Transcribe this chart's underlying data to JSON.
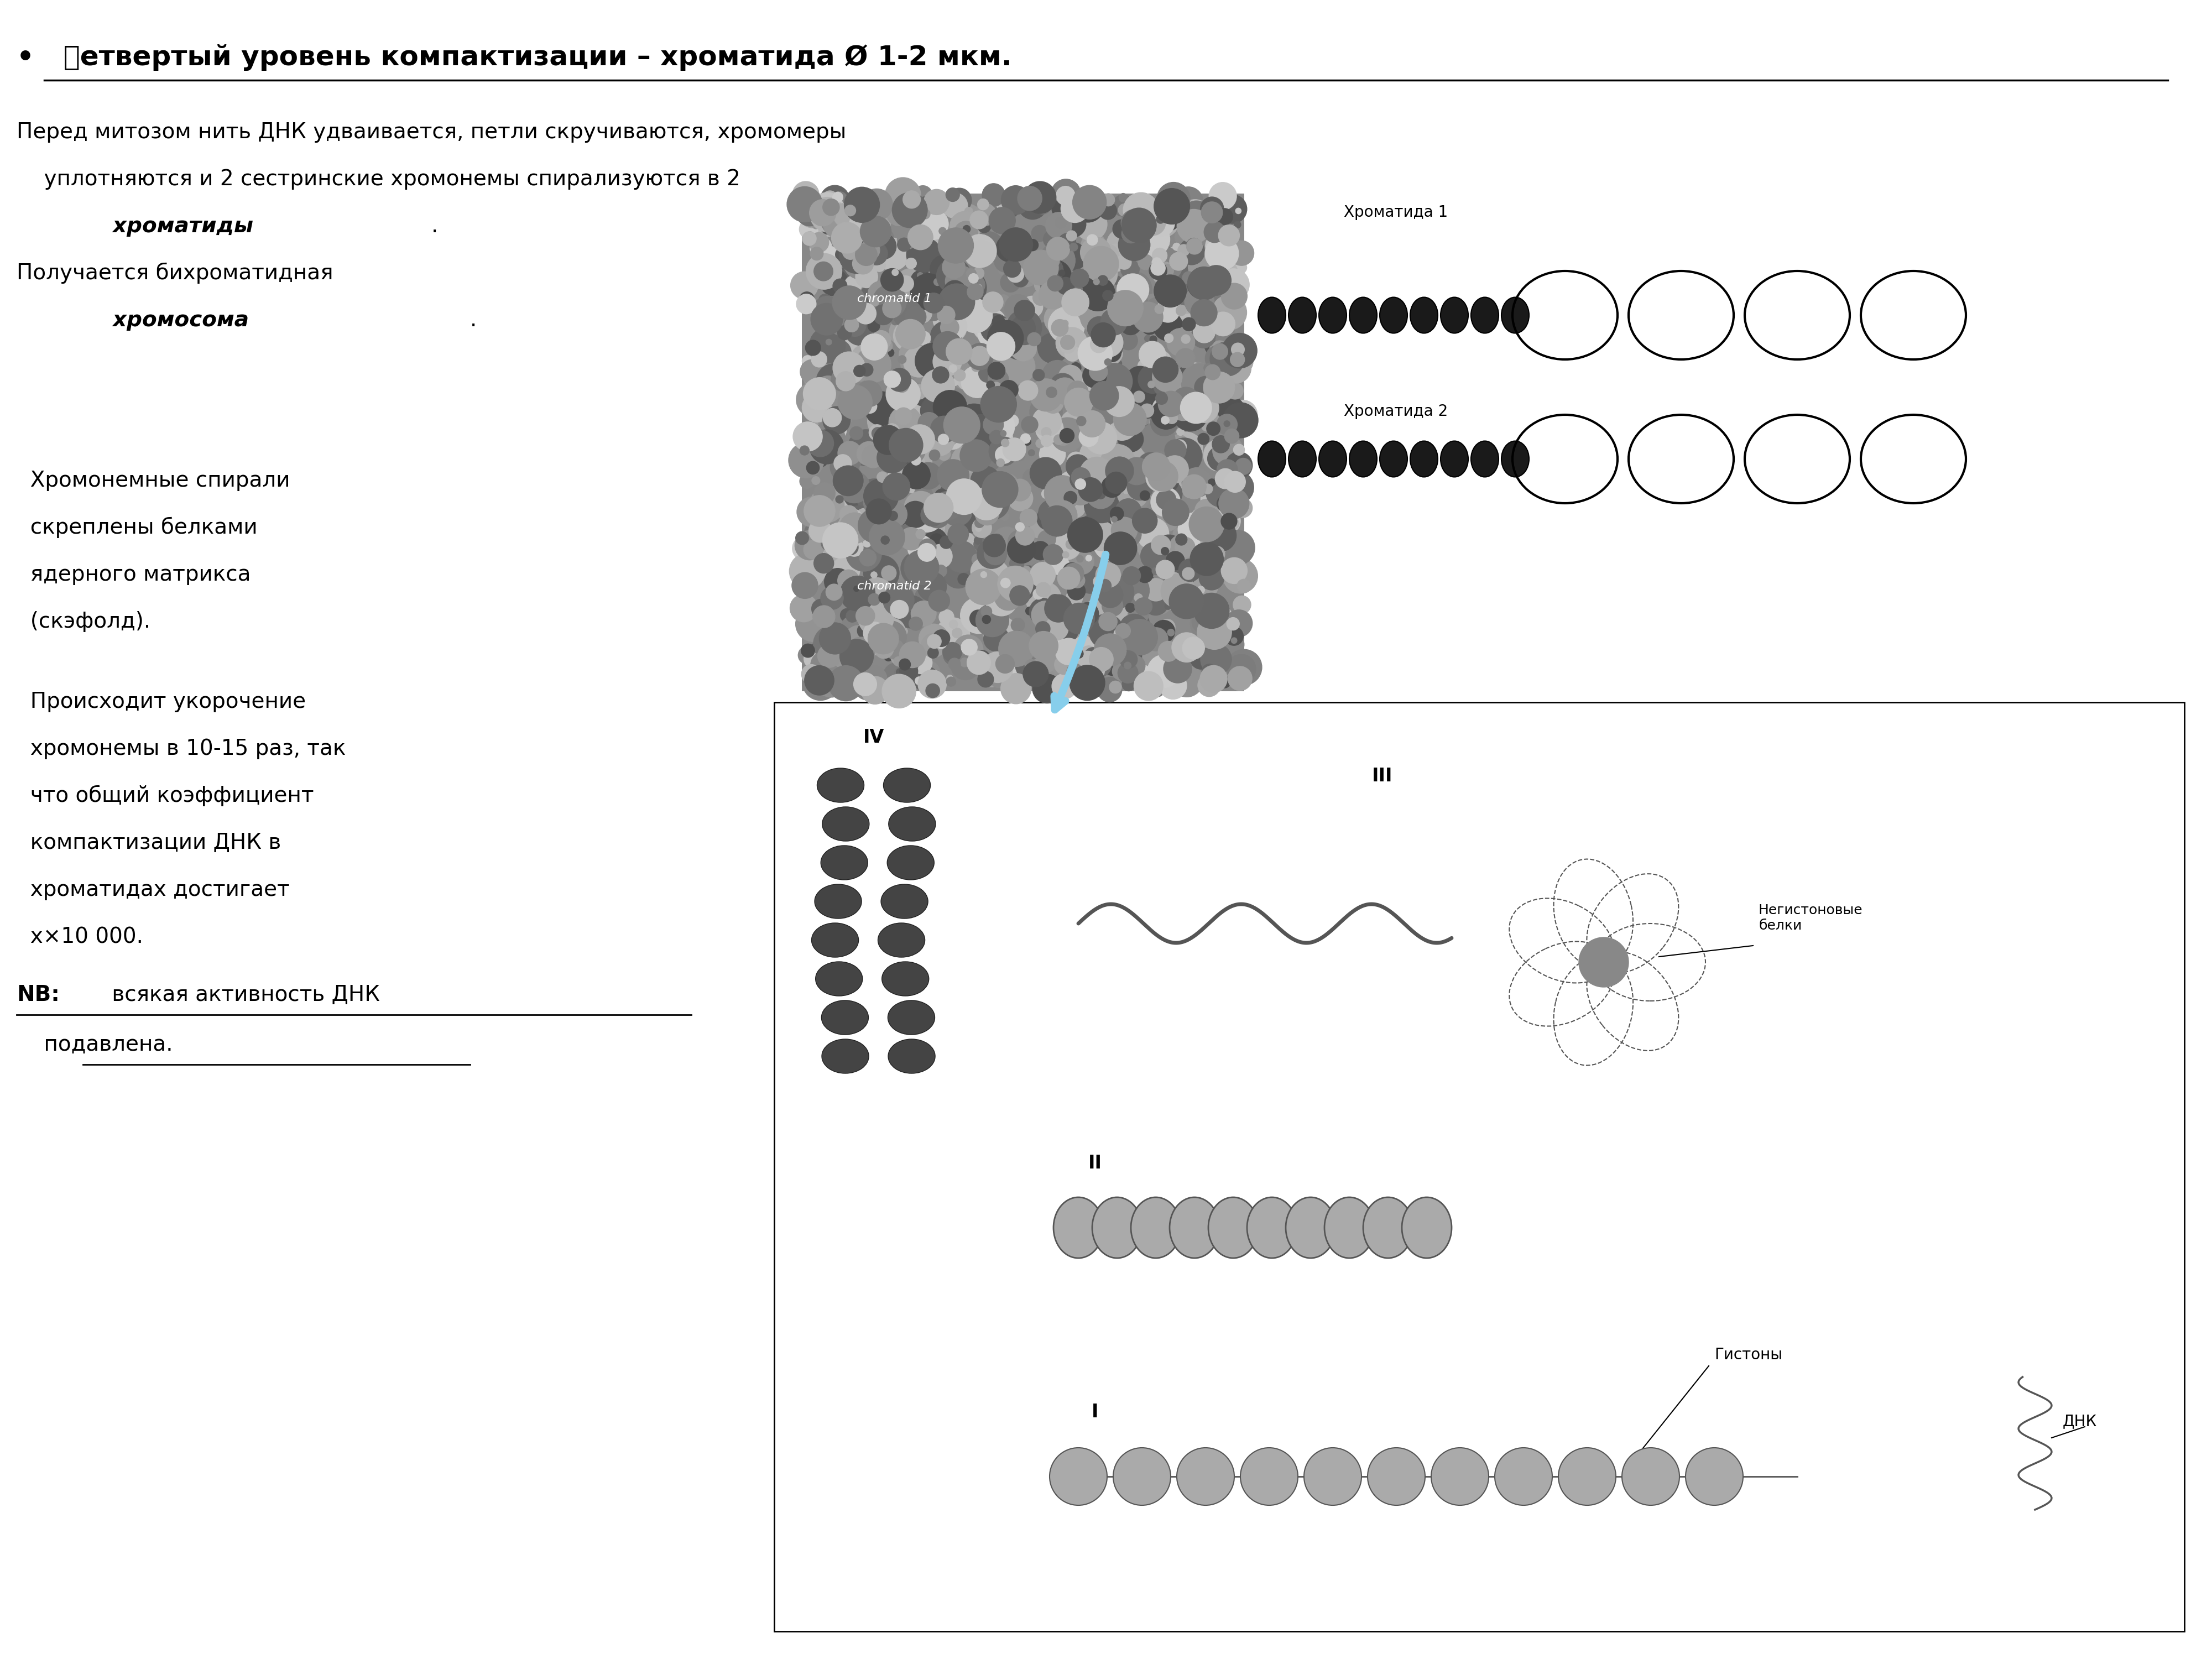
{
  "title_bullet": "•",
  "title_text": "  䉾етвертый уровень компактизации – хроматида Ø 1-2 мкм.",
  "para1_line1": "Перед митозом нить ДНК удваивается, петли скручиваются, хромомеры",
  "para1_line2": "    уплотняются и 2 сестринские хромонемы спирализуются в 2",
  "para1_line3_bold_italic": "    хроматиды",
  "para1_line3_end": ".",
  "para2_line1": "Получается бихроматидная",
  "para2_line2_bold_italic": "    хромосома",
  "para2_line2_end": ".",
  "para3_line1": "  Хромонемные спирали",
  "para3_line2": "  скреплены белками",
  "para3_line3": "  ядерного матрикса",
  "para3_line4": "  (скэфолд).",
  "para4_line1": "  Происходит укорочение",
  "para4_line2": "  хромонемы в 10-15 раз, так",
  "para4_line3": "  что общий коэффициент",
  "para4_line4": "  компактизации ДНК в",
  "para4_line5": "  хроматидах достигает",
  "para4_line6": "  х×10 000.",
  "nb_bold": "NB:",
  "nb_underline": " всякая активность ДНК",
  "nb_line2": "    подавлена.",
  "label_chromatid1": "Хроматида 1",
  "label_chromatid2": "Хроматида 2",
  "label_IV": "IV",
  "label_III": "III",
  "label_II": "II",
  "label_I": "I",
  "label_non_histone": "Негистоновые\nбелки",
  "label_histones": "Гистоны",
  "label_dna": "ДНК",
  "bg_color": "#ffffff",
  "text_color": "#000000",
  "title_fontsize": 36,
  "body_fontsize": 28,
  "small_fontsize": 20
}
